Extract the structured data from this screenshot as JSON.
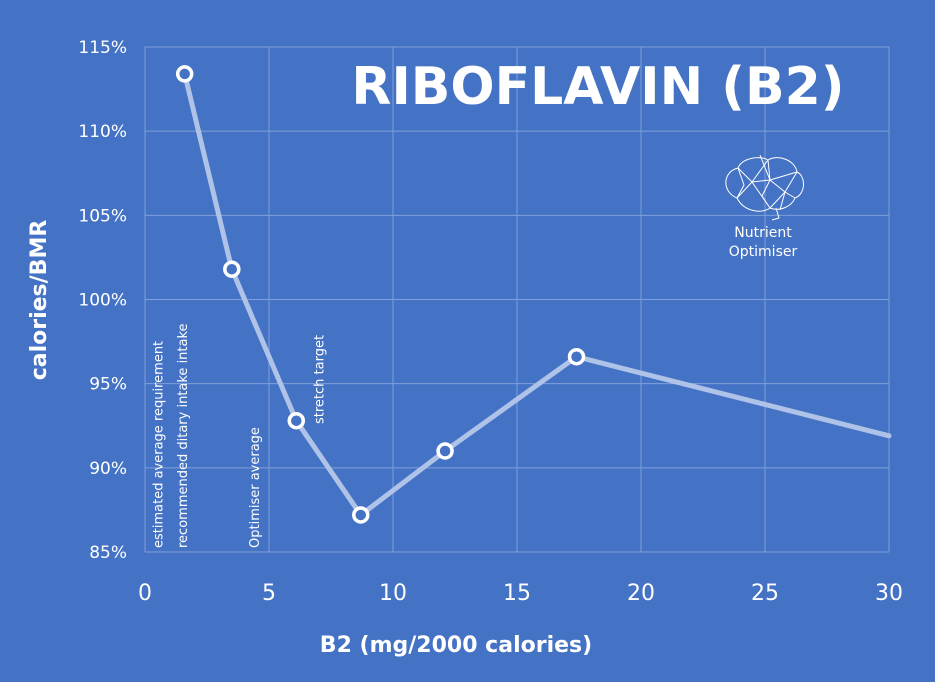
{
  "chart_data": {
    "type": "line",
    "title": "RIBOFLAVIN (B2)",
    "xlabel": "B2 (mg/2000 calories)",
    "ylabel": "calories/BMR",
    "xlim": [
      0,
      30
    ],
    "ylim": [
      85,
      115
    ],
    "x_ticks": [
      "0",
      "5",
      "10",
      "15",
      "20",
      "25",
      "30"
    ],
    "y_ticks": [
      "85%",
      "90%",
      "95%",
      "100%",
      "105%",
      "110%",
      "115%"
    ],
    "grid": true,
    "line_color": "#AFC3E8",
    "marker_color": "#FFFFFF",
    "points": [
      {
        "x": 1.6,
        "y": 113.4
      },
      {
        "x": 3.5,
        "y": 101.8
      },
      {
        "x": 6.1,
        "y": 92.8
      },
      {
        "x": 8.7,
        "y": 87.2
      },
      {
        "x": 12.1,
        "y": 91.0
      },
      {
        "x": 17.4,
        "y": 96.6
      }
    ],
    "line_end": {
      "x": 30,
      "y": 91.9
    },
    "reference_lines": [
      {
        "x": 0.5,
        "label": "estimated average requirement"
      },
      {
        "x": 1.5,
        "label": "recommended ditary intake intake"
      },
      {
        "x": 4.4,
        "label": "Optimiser average"
      },
      {
        "x": 7.0,
        "label": "stretch target"
      }
    ]
  },
  "logo": {
    "icon": "brain-icon",
    "line1": "Nutrient",
    "line2": "Optimiser"
  }
}
